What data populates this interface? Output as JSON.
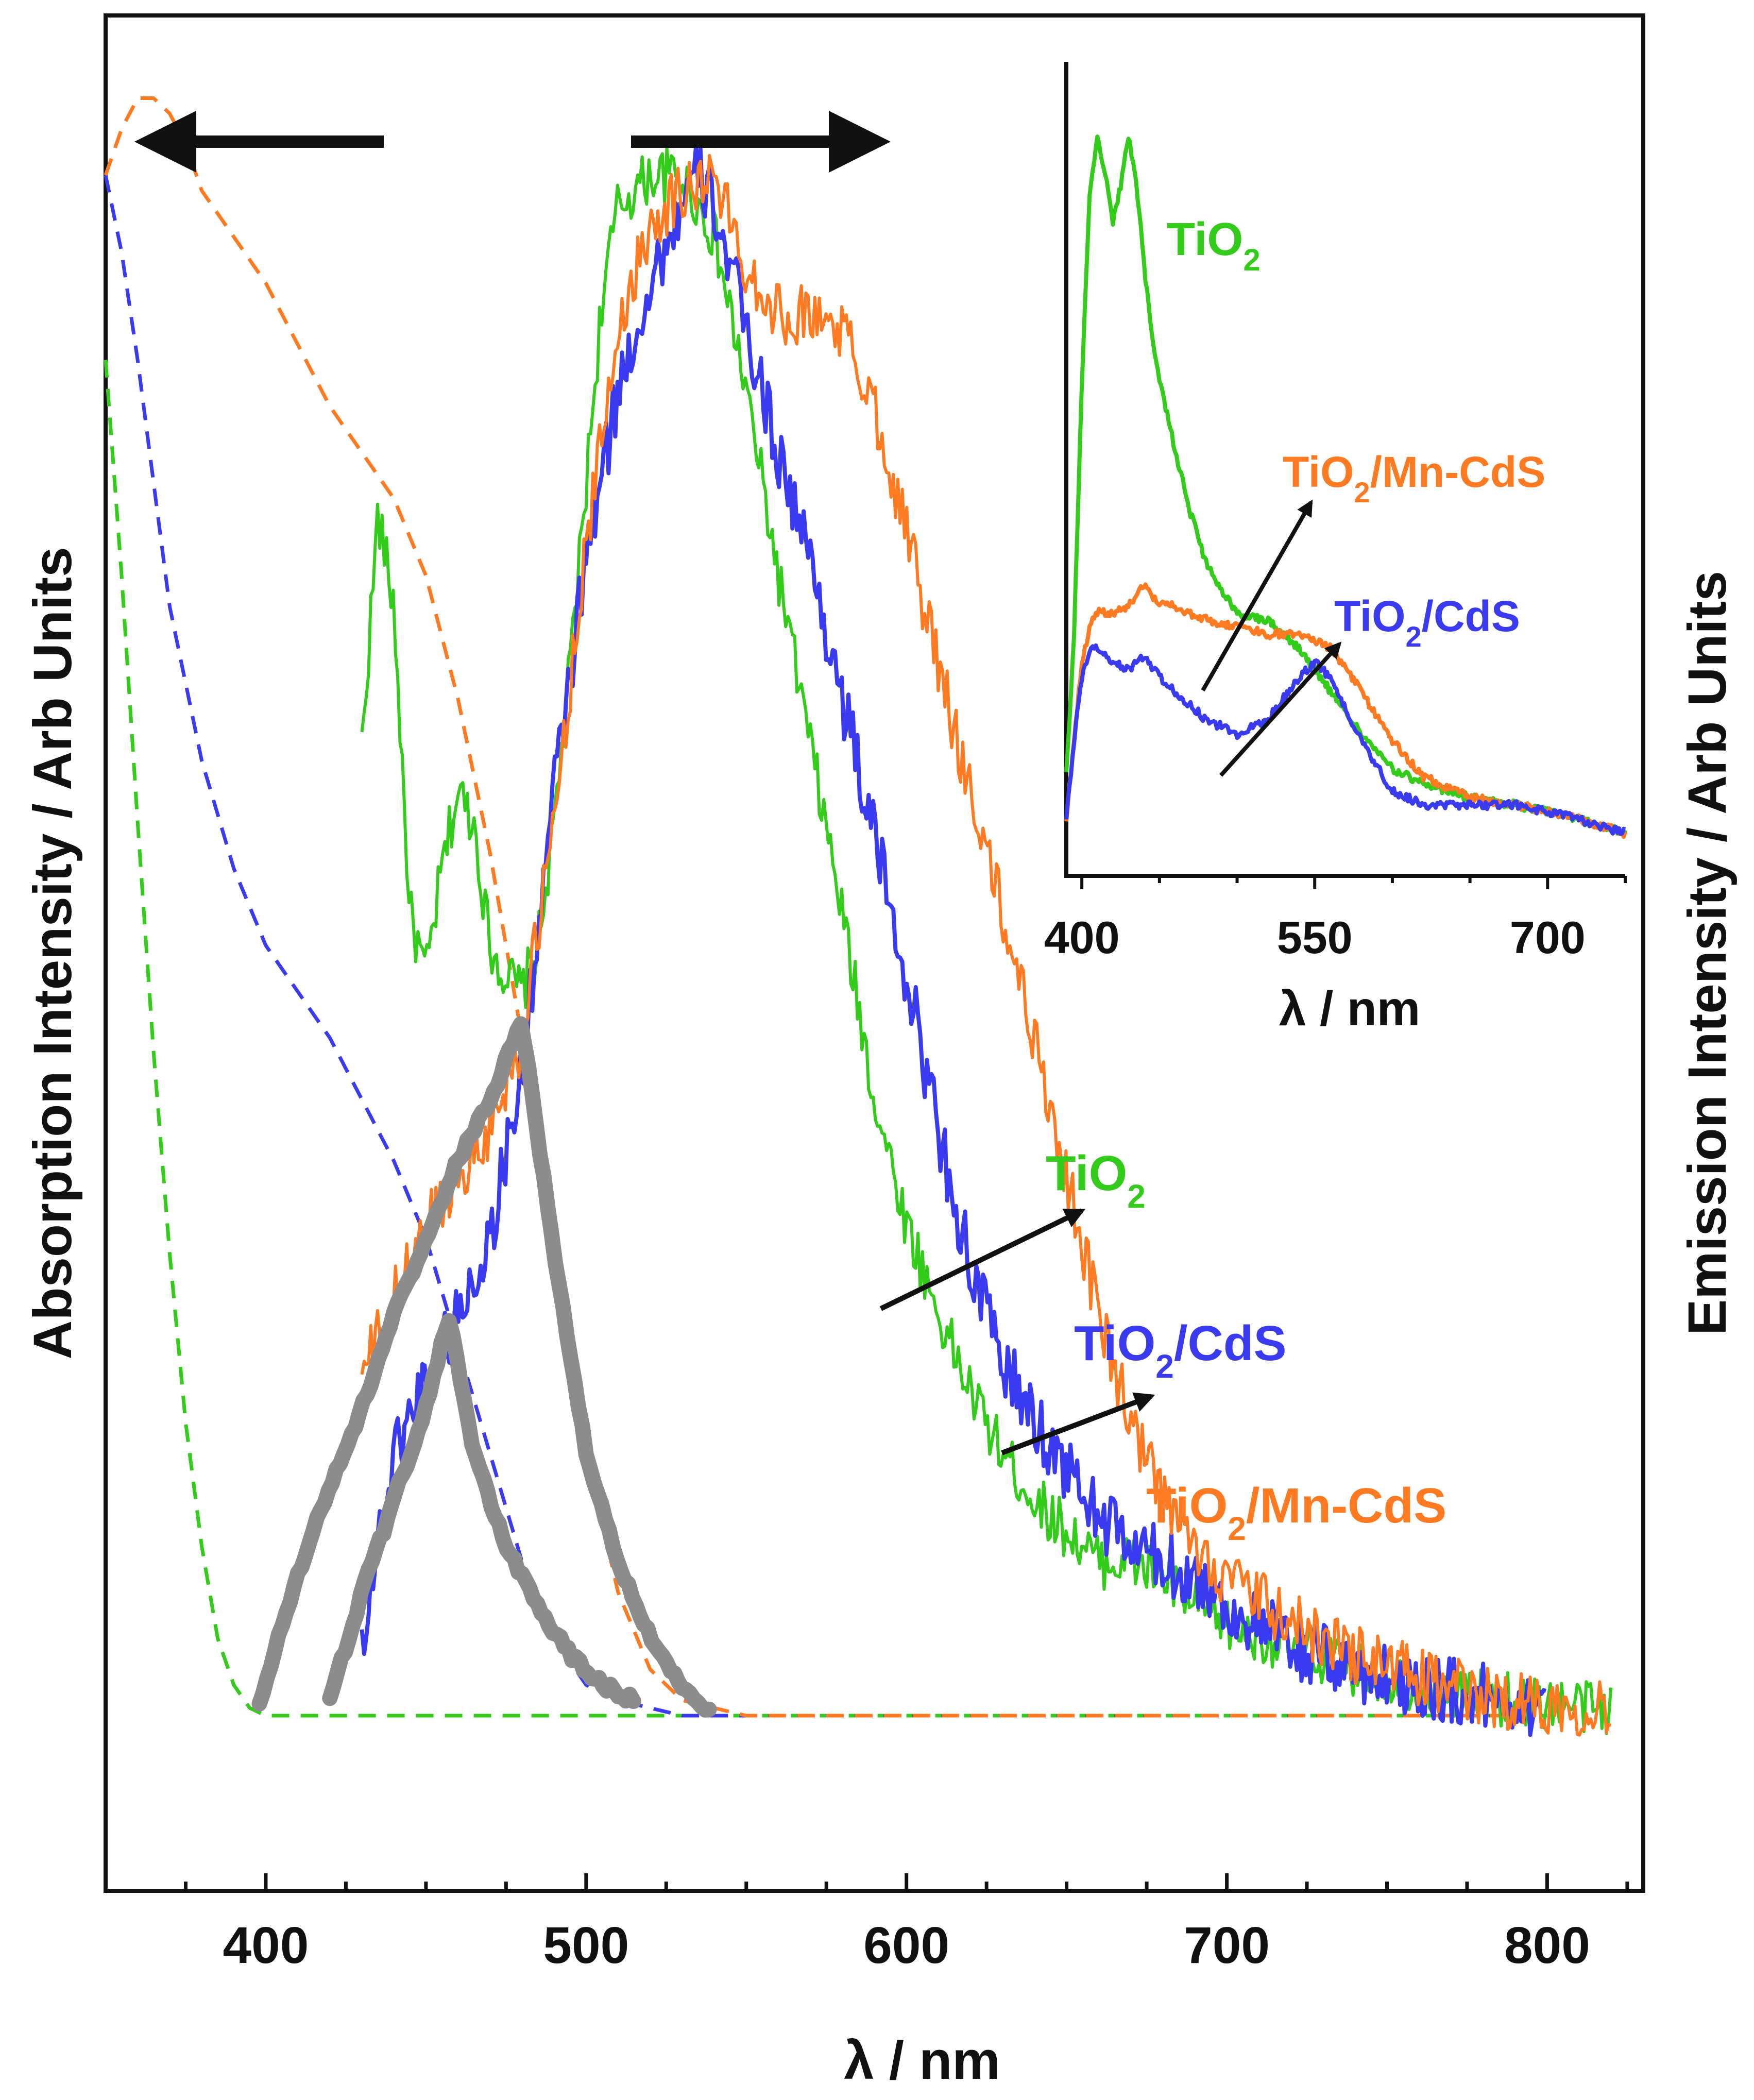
{
  "chart_data": [
    {
      "type": "line",
      "title": "",
      "xlabel": "λ / nm",
      "ylabel_left": "Absorption Intensity / Arb Units",
      "ylabel_right": "Emission Intensity / Arb Units",
      "xlim": [
        350,
        830
      ],
      "ylim": [
        -0.15,
        1.08
      ],
      "x_ticks": [
        400,
        500,
        600,
        700,
        800
      ],
      "x_tick_labels": [
        "400",
        "500",
        "600",
        "700",
        "800"
      ],
      "grid": false,
      "colors": {
        "green": "#33cc1a",
        "blue": "#3a3af0",
        "orange": "#ff7a21",
        "gray": "#8c8c8c",
        "black": "#111111"
      },
      "absorption_series": [
        {
          "name": "TiO2 absorption",
          "color_key": "green",
          "style": "dashed",
          "x": [
            350,
            355,
            360,
            365,
            370,
            375,
            380,
            385,
            390,
            395,
            400,
            420,
            500,
            600,
            700,
            800
          ],
          "y": [
            0.88,
            0.74,
            0.58,
            0.43,
            0.3,
            0.19,
            0.11,
            0.05,
            0.02,
            0.005,
            0.0,
            0.0,
            0.0,
            0.0,
            0.0,
            0.0
          ]
        },
        {
          "name": "TiO2/CdS absorption",
          "color_key": "blue",
          "style": "dashed",
          "x": [
            350,
            355,
            360,
            365,
            370,
            380,
            390,
            400,
            410,
            420,
            430,
            440,
            450,
            460,
            470,
            480,
            490,
            500,
            510,
            520,
            530,
            540,
            560,
            600,
            700,
            800
          ],
          "y": [
            1.0,
            0.95,
            0.88,
            0.8,
            0.72,
            0.62,
            0.55,
            0.5,
            0.47,
            0.44,
            0.4,
            0.36,
            0.31,
            0.24,
            0.17,
            0.1,
            0.05,
            0.02,
            0.01,
            0.005,
            0.0,
            0.0,
            0.0,
            0.0,
            0.0,
            0.0
          ]
        },
        {
          "name": "TiO2/Mn-CdS absorption",
          "color_key": "orange",
          "style": "dashed",
          "x": [
            350,
            355,
            360,
            365,
            370,
            375,
            380,
            390,
            400,
            410,
            420,
            430,
            440,
            450,
            460,
            470,
            480,
            490,
            500,
            510,
            520,
            530,
            540,
            550,
            600,
            700,
            800
          ],
          "y": [
            1.0,
            1.03,
            1.05,
            1.05,
            1.04,
            1.02,
            0.99,
            0.96,
            0.93,
            0.89,
            0.85,
            0.82,
            0.79,
            0.74,
            0.66,
            0.56,
            0.44,
            0.3,
            0.17,
            0.08,
            0.03,
            0.01,
            0.005,
            0.0,
            0.0,
            0.0,
            0.0
          ]
        }
      ],
      "emission_series": [
        {
          "name": "TiO2",
          "color_key": "green",
          "noise": 0.018,
          "x": [
            430,
            435,
            440,
            445,
            450,
            455,
            460,
            465,
            470,
            475,
            480,
            485,
            490,
            495,
            500,
            505,
            510,
            520,
            530,
            540,
            550,
            560,
            570,
            580,
            590,
            600,
            610,
            620,
            630,
            640,
            650,
            660,
            670,
            680,
            690,
            700,
            720,
            740,
            760,
            780,
            800,
            820
          ],
          "y": [
            0.63,
            0.78,
            0.72,
            0.52,
            0.48,
            0.55,
            0.6,
            0.58,
            0.5,
            0.48,
            0.47,
            0.5,
            0.58,
            0.68,
            0.8,
            0.92,
            0.98,
            1.0,
            1.0,
            0.96,
            0.86,
            0.74,
            0.63,
            0.52,
            0.4,
            0.32,
            0.26,
            0.21,
            0.17,
            0.14,
            0.12,
            0.1,
            0.1,
            0.09,
            0.07,
            0.06,
            0.045,
            0.03,
            0.02,
            0.012,
            0.008,
            0.005
          ]
        },
        {
          "name": "TiO2/CdS",
          "color_key": "blue",
          "noise": 0.022,
          "x": [
            430,
            440,
            450,
            460,
            470,
            480,
            490,
            500,
            510,
            520,
            530,
            535,
            540,
            550,
            560,
            570,
            580,
            590,
            600,
            610,
            620,
            630,
            640,
            650,
            660,
            670,
            680,
            690,
            700,
            720,
            740,
            760,
            780,
            800
          ],
          "y": [
            0.05,
            0.17,
            0.22,
            0.26,
            0.31,
            0.42,
            0.6,
            0.75,
            0.86,
            0.93,
            0.98,
            1.0,
            0.98,
            0.9,
            0.82,
            0.75,
            0.66,
            0.57,
            0.48,
            0.38,
            0.29,
            0.23,
            0.19,
            0.16,
            0.13,
            0.11,
            0.1,
            0.09,
            0.07,
            0.045,
            0.03,
            0.02,
            0.012,
            0.008
          ]
        },
        {
          "name": "TiO2/Mn-CdS",
          "color_key": "orange",
          "noise": 0.02,
          "x": [
            430,
            440,
            450,
            460,
            470,
            480,
            490,
            500,
            510,
            520,
            530,
            540,
            550,
            560,
            570,
            580,
            590,
            600,
            610,
            620,
            630,
            640,
            650,
            660,
            670,
            680,
            690,
            700,
            720,
            740,
            760,
            780,
            800,
            820
          ],
          "y": [
            0.22,
            0.27,
            0.32,
            0.35,
            0.38,
            0.44,
            0.58,
            0.76,
            0.9,
            0.97,
            0.99,
            1.0,
            0.94,
            0.91,
            0.91,
            0.9,
            0.85,
            0.77,
            0.68,
            0.6,
            0.52,
            0.44,
            0.35,
            0.26,
            0.19,
            0.14,
            0.11,
            0.09,
            0.06,
            0.04,
            0.025,
            0.012,
            0.008,
            0.005
          ]
        }
      ],
      "gray_bands": [
        {
          "name": "gray-band-1",
          "x": [
            398,
            410,
            420,
            430,
            440,
            450,
            460,
            470,
            480,
            490,
            500,
            510,
            520,
            530,
            539
          ],
          "y": [
            0.01,
            0.09,
            0.15,
            0.2,
            0.26,
            0.31,
            0.36,
            0.4,
            0.45,
            0.3,
            0.17,
            0.1,
            0.05,
            0.02,
            0.0
          ]
        },
        {
          "name": "gray-band-2",
          "x": [
            420,
            430,
            440,
            450,
            457,
            465,
            475,
            485,
            495,
            505,
            515
          ],
          "y": [
            0.01,
            0.08,
            0.14,
            0.2,
            0.26,
            0.17,
            0.11,
            0.07,
            0.04,
            0.02,
            0.01
          ]
        }
      ],
      "annotations": [
        {
          "name": "absorption-direction-arrow",
          "direction": "left"
        },
        {
          "name": "emission-direction-arrow",
          "direction": "right"
        }
      ],
      "legend_labels": [
        {
          "key": "green",
          "base": "TiO",
          "sub": "2",
          "tail": ""
        },
        {
          "key": "blue",
          "base": "TiO",
          "sub": "2",
          "tail": "/CdS"
        },
        {
          "key": "orange",
          "base": "TiO",
          "sub": "2",
          "tail": "/Mn-CdS"
        }
      ]
    },
    {
      "type": "line",
      "title": "inset",
      "xlabel": "λ / nm",
      "ylabel": "",
      "xlim": [
        390,
        750
      ],
      "ylim": [
        0,
        1.05
      ],
      "x_ticks": [
        400,
        550,
        700
      ],
      "x_tick_labels": [
        "400",
        "550",
        "700"
      ],
      "series": [
        {
          "name": "TiO2",
          "color_key": "green",
          "noise": 0.006,
          "x": [
            390,
            395,
            400,
            405,
            410,
            415,
            420,
            425,
            430,
            435,
            440,
            445,
            450,
            460,
            470,
            480,
            490,
            500,
            520,
            540,
            560,
            580,
            600,
            620,
            650,
            680,
            700,
            720,
            750
          ],
          "y": [
            0.1,
            0.3,
            0.65,
            0.92,
            1.0,
            0.95,
            0.88,
            0.93,
            1.0,
            0.94,
            0.82,
            0.72,
            0.66,
            0.56,
            0.47,
            0.4,
            0.36,
            0.33,
            0.32,
            0.28,
            0.22,
            0.16,
            0.11,
            0.09,
            0.07,
            0.06,
            0.05,
            0.04,
            0.02
          ]
        },
        {
          "name": "TiO2/Mn-CdS",
          "color_key": "orange",
          "noise": 0.006,
          "x": [
            390,
            395,
            400,
            405,
            410,
            420,
            430,
            440,
            450,
            460,
            480,
            500,
            520,
            540,
            560,
            580,
            600,
            620,
            650,
            680,
            700,
            720,
            750
          ],
          "y": [
            0.04,
            0.15,
            0.26,
            0.31,
            0.33,
            0.33,
            0.34,
            0.37,
            0.34,
            0.34,
            0.32,
            0.31,
            0.3,
            0.3,
            0.28,
            0.22,
            0.15,
            0.1,
            0.07,
            0.06,
            0.05,
            0.04,
            0.02
          ]
        },
        {
          "name": "TiO2/CdS",
          "color_key": "blue",
          "noise": 0.006,
          "x": [
            390,
            395,
            400,
            405,
            410,
            420,
            430,
            440,
            450,
            460,
            480,
            500,
            520,
            540,
            550,
            560,
            580,
            600,
            620,
            650,
            680,
            700,
            720,
            750
          ],
          "y": [
            0.04,
            0.15,
            0.24,
            0.28,
            0.28,
            0.26,
            0.25,
            0.27,
            0.24,
            0.22,
            0.18,
            0.16,
            0.18,
            0.24,
            0.26,
            0.24,
            0.15,
            0.08,
            0.06,
            0.06,
            0.06,
            0.05,
            0.04,
            0.02
          ]
        }
      ],
      "legend_labels": [
        {
          "key": "green",
          "base": "TiO",
          "sub": "2",
          "tail": ""
        },
        {
          "key": "orange",
          "base": "TiO",
          "sub": "2",
          "tail": "/Mn-CdS"
        },
        {
          "key": "blue",
          "base": "TiO",
          "sub": "2",
          "tail": "/CdS"
        }
      ]
    }
  ]
}
